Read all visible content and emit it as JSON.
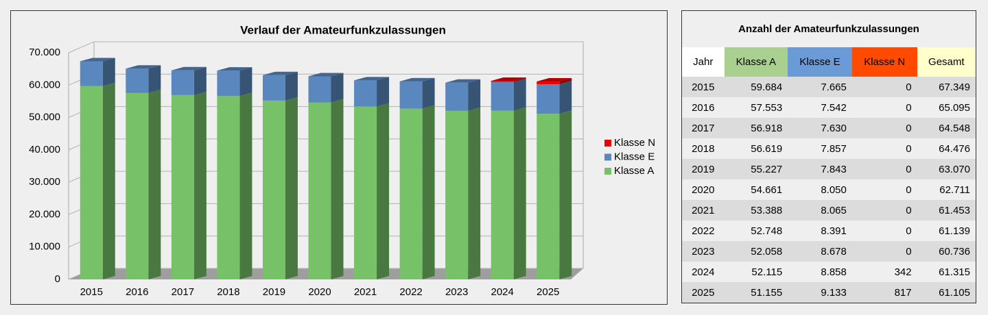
{
  "chart_data": {
    "type": "bar3d_stacked",
    "title": "Verlauf der Amateurfunkzulassungen",
    "categories": [
      "2015",
      "2016",
      "2017",
      "2018",
      "2019",
      "2020",
      "2021",
      "2022",
      "2023",
      "2024",
      "2025"
    ],
    "series": [
      {
        "name": "Klasse A",
        "color": "#77c169",
        "values": [
          59684,
          57553,
          56918,
          56619,
          55227,
          54661,
          53388,
          52748,
          52058,
          52115,
          51155
        ]
      },
      {
        "name": "Klasse E",
        "color": "#5a87bd",
        "values": [
          7665,
          7542,
          7630,
          7857,
          7843,
          8050,
          8065,
          8391,
          8678,
          8858,
          9133
        ]
      },
      {
        "name": "Klasse N",
        "color": "#ee0000",
        "values": [
          0,
          0,
          0,
          0,
          0,
          0,
          0,
          0,
          0,
          342,
          817
        ]
      }
    ],
    "ylim": [
      0,
      70000
    ],
    "yticks": [
      0,
      {
        "value": 10000,
        "label": "10.000"
      },
      {
        "value": 20000,
        "label": "20.000"
      },
      {
        "value": 30000,
        "label": "30.000"
      },
      {
        "value": 40000,
        "label": "40.000"
      },
      {
        "value": 50000,
        "label": "50.000"
      },
      {
        "value": 60000,
        "label": "60.000"
      },
      {
        "value": 70000,
        "label": "70.000"
      }
    ],
    "grid": true,
    "legend": "right"
  },
  "table": {
    "title": "Anzahl der Amateurfunkzulassungen",
    "header": [
      "Jahr",
      "Klasse A",
      "Klasse E",
      "Klasse N",
      "Gesamt"
    ],
    "rows": [
      [
        "2015",
        "59.684",
        "7.665",
        "0",
        "67.349"
      ],
      [
        "2016",
        "57.553",
        "7.542",
        "0",
        "65.095"
      ],
      [
        "2017",
        "56.918",
        "7.630",
        "0",
        "64.548"
      ],
      [
        "2018",
        "56.619",
        "7.857",
        "0",
        "64.476"
      ],
      [
        "2019",
        "55.227",
        "7.843",
        "0",
        "63.070"
      ],
      [
        "2020",
        "54.661",
        "8.050",
        "0",
        "62.711"
      ],
      [
        "2021",
        "53.388",
        "8.065",
        "0",
        "61.453"
      ],
      [
        "2022",
        "52.748",
        "8.391",
        "0",
        "61.139"
      ],
      [
        "2023",
        "52.058",
        "8.678",
        "0",
        "60.736"
      ],
      [
        "2024",
        "52.115",
        "8.858",
        "342",
        "61.315"
      ],
      [
        "2025",
        "51.155",
        "9.133",
        "817",
        "61.105"
      ]
    ]
  }
}
